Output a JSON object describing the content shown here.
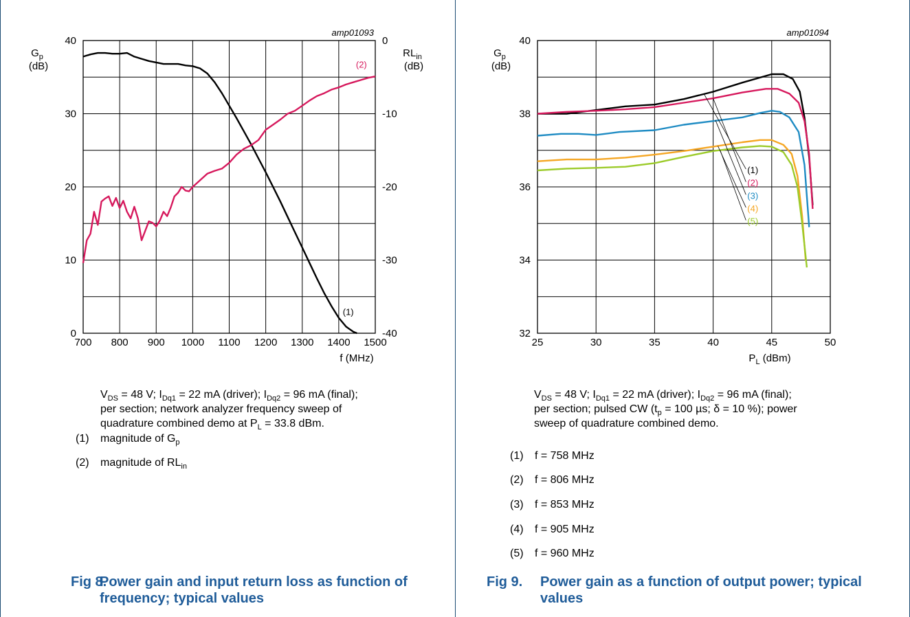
{
  "figures": [
    {
      "fig_number": "Fig 8.",
      "caption": "Power gain and input return loss as function of frequency; typical values",
      "conditions": [
        "V",
        "DS",
        " = 48 V; I",
        "Dq1",
        " = 22 mA (driver); I",
        "Dq2",
        " = 96 mA (final);",
        "per section; network analyzer frequency sweep of",
        "quadrature combined demo at P",
        "L",
        " = 33.8 dBm."
      ],
      "notes": [
        {
          "num": "(1)",
          "text": "magnitude of G",
          "sub": "p"
        },
        {
          "num": "(2)",
          "text": "magnitude of RL",
          "sub": "in"
        }
      ]
    },
    {
      "fig_number": "Fig 9.",
      "caption": "Power gain as a function of output power; typical values",
      "conditions": [
        "V",
        "DS",
        " = 48 V; I",
        "Dq1",
        " = 22 mA (driver); I",
        "Dq2",
        " = 96 mA (final);",
        "per section; pulsed CW (t",
        "p",
        " = 100 µs; δ = 10 %); power",
        "sweep of quadrature combined demo."
      ],
      "notes": [
        {
          "num": "(1)",
          "text": "f = 758 MHz"
        },
        {
          "num": "(2)",
          "text": "f = 806 MHz"
        },
        {
          "num": "(3)",
          "text": "f = 853 MHz"
        },
        {
          "num": "(4)",
          "text": "f = 905 MHz"
        },
        {
          "num": "(5)",
          "text": "f = 960 MHz"
        }
      ]
    }
  ],
  "chart_data": [
    {
      "type": "line",
      "code": "amp01093",
      "xlabel": "f (MHz)",
      "ylabel_main": "G",
      "ylabel_sub": "p",
      "ylabel_unit": "(dB)",
      "y2label_main": "RL",
      "y2label_sub": "in",
      "y2label_unit": "(dB)",
      "xlim": [
        700,
        1500
      ],
      "ylim": [
        0,
        40
      ],
      "y2lim": [
        -40,
        0
      ],
      "xticks": [
        700,
        800,
        900,
        1000,
        1100,
        1200,
        1300,
        1400,
        1500
      ],
      "yticks": [
        0,
        10,
        20,
        30,
        40
      ],
      "y2ticks": [
        -40,
        -30,
        -20,
        -10,
        0
      ],
      "grid": true,
      "series": [
        {
          "name": "(1)",
          "axis": "left",
          "color": "#000000",
          "x": [
            700,
            720,
            740,
            760,
            780,
            800,
            820,
            840,
            860,
            880,
            900,
            920,
            940,
            960,
            980,
            1000,
            1020,
            1040,
            1060,
            1080,
            1100,
            1120,
            1140,
            1160,
            1180,
            1200,
            1220,
            1240,
            1260,
            1280,
            1300,
            1320,
            1340,
            1360,
            1380,
            1400,
            1420,
            1440,
            1450
          ],
          "y": [
            37.8,
            38.1,
            38.3,
            38.3,
            38.2,
            38.2,
            38.3,
            37.8,
            37.5,
            37.2,
            37.0,
            36.8,
            36.8,
            36.8,
            36.6,
            36.5,
            36.2,
            35.5,
            34.3,
            32.8,
            31.1,
            29.4,
            27.6,
            25.8,
            23.9,
            22.0,
            20.0,
            18.0,
            15.9,
            13.8,
            11.7,
            9.6,
            7.5,
            5.5,
            3.7,
            2.1,
            0.9,
            0.2,
            0
          ]
        },
        {
          "name": "(2)",
          "axis": "right",
          "color": "#d6185c",
          "x": [
            700,
            710,
            720,
            730,
            740,
            750,
            760,
            770,
            780,
            790,
            800,
            810,
            820,
            830,
            840,
            850,
            860,
            870,
            880,
            890,
            900,
            910,
            920,
            930,
            940,
            950,
            960,
            970,
            980,
            990,
            1000,
            1020,
            1040,
            1060,
            1080,
            1100,
            1120,
            1140,
            1160,
            1180,
            1200,
            1220,
            1240,
            1260,
            1280,
            1300,
            1320,
            1340,
            1360,
            1380,
            1400,
            1420,
            1440,
            1460,
            1480,
            1500
          ],
          "y": [
            -30.4,
            -27.3,
            -26.4,
            -23.4,
            -25.2,
            -22.0,
            -21.6,
            -21.3,
            -22.6,
            -21.5,
            -22.9,
            -21.9,
            -23.4,
            -24.3,
            -22.7,
            -24.3,
            -27.3,
            -26.0,
            -24.7,
            -24.9,
            -25.4,
            -24.6,
            -23.4,
            -24.0,
            -22.8,
            -21.3,
            -20.8,
            -20.0,
            -20.5,
            -20.6,
            -20.0,
            -19.1,
            -18.2,
            -17.8,
            -17.5,
            -16.7,
            -15.6,
            -14.8,
            -14.3,
            -13.6,
            -12.2,
            -11.5,
            -10.8,
            -10.0,
            -9.6,
            -8.9,
            -8.2,
            -7.6,
            -7.2,
            -6.7,
            -6.4,
            -6.0,
            -5.7,
            -5.4,
            -5.1,
            -4.9
          ]
        }
      ]
    },
    {
      "type": "line",
      "code": "amp01094",
      "xlabel_main": "P",
      "xlabel_sub": "L",
      "xlabel_unit": " (dBm)",
      "ylabel_main": "G",
      "ylabel_sub": "p",
      "ylabel_unit": "(dB)",
      "xlim": [
        25,
        50
      ],
      "ylim": [
        32,
        40
      ],
      "xticks": [
        25,
        30,
        35,
        40,
        45,
        50
      ],
      "yticks": [
        32,
        34,
        36,
        38,
        40
      ],
      "grid": true,
      "series": [
        {
          "name": "(1)",
          "color": "#000000",
          "x": [
            25,
            27.5,
            30,
            32.5,
            35,
            37.5,
            40,
            42.5,
            45,
            46,
            46.8,
            47.4,
            47.8,
            48.2,
            48.5
          ],
          "y": [
            38.0,
            38.0,
            38.1,
            38.2,
            38.25,
            38.4,
            38.6,
            38.85,
            39.08,
            39.08,
            38.95,
            38.6,
            37.9,
            36.8,
            35.5
          ]
        },
        {
          "name": "(2)",
          "color": "#d6185c",
          "x": [
            25,
            27.5,
            30,
            32.5,
            35,
            37.5,
            40,
            42.5,
            44.5,
            45.5,
            46.5,
            47.3,
            47.8,
            48.2,
            48.5
          ],
          "y": [
            38.0,
            38.05,
            38.08,
            38.12,
            38.18,
            38.3,
            38.42,
            38.58,
            38.68,
            38.68,
            38.55,
            38.3,
            37.8,
            36.9,
            35.4
          ]
        },
        {
          "name": "(3)",
          "color": "#1e8bc3",
          "x": [
            25,
            27,
            28.5,
            30,
            32,
            35,
            37.5,
            40,
            42.5,
            44,
            45,
            45.7,
            46.5,
            47.3,
            47.8,
            48.2
          ],
          "y": [
            37.4,
            37.45,
            37.45,
            37.42,
            37.5,
            37.55,
            37.7,
            37.8,
            37.9,
            38.02,
            38.08,
            38.05,
            37.9,
            37.5,
            36.6,
            34.9
          ]
        },
        {
          "name": "(4)",
          "color": "#f5a623",
          "x": [
            25,
            27.5,
            30,
            32.5,
            35,
            37.5,
            40,
            42.5,
            44,
            45,
            46,
            46.7,
            47.2,
            47.6,
            47.9
          ],
          "y": [
            36.7,
            36.75,
            36.75,
            36.8,
            36.88,
            36.98,
            37.1,
            37.22,
            37.28,
            37.28,
            37.15,
            36.9,
            36.3,
            35.2,
            34.0
          ]
        },
        {
          "name": "(5)",
          "color": "#9ccb2a",
          "x": [
            25,
            27.5,
            30,
            32.5,
            35,
            37.5,
            40,
            42.5,
            44,
            45,
            46,
            46.7,
            47.2,
            47.6,
            48.0
          ],
          "y": [
            36.45,
            36.5,
            36.52,
            36.55,
            36.65,
            36.82,
            36.98,
            37.08,
            37.12,
            37.1,
            36.95,
            36.6,
            36.0,
            35.0,
            33.8
          ]
        }
      ]
    }
  ]
}
